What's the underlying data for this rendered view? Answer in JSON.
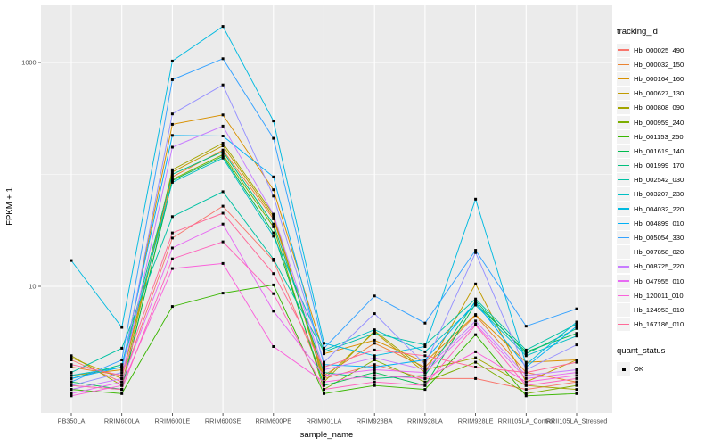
{
  "figure": {
    "xlabel": "sample_name",
    "ylabel": "FPKM + 1"
  },
  "legend": {
    "tracking_title": "tracking_id",
    "quant_title": "quant_status",
    "quant_items": [
      {
        "label": "OK",
        "marker": "black-square"
      }
    ]
  },
  "colors": {
    "panel_bg": "#EBEBEB",
    "grid": "#FFFFFF",
    "axis_text": "#4D4D4D",
    "tick_mark": "#333333",
    "point": "#000000",
    "legend_key_bg": "#F2F2F2"
  },
  "chart_data": {
    "type": "line",
    "title": "",
    "xlabel": "sample_name",
    "ylabel": "FPKM + 1",
    "y_scale": "log10",
    "y_tick_labels": [
      "1000",
      "10"
    ],
    "y_tick_values": [
      1000,
      10
    ],
    "grid_major_y": [
      10,
      1000
    ],
    "grid_minor_y": [
      100
    ],
    "legend_position": "right",
    "point_shape": "square",
    "categories": [
      "PB350LA",
      "RRIM600LA",
      "RRIM600LE",
      "RRIM600SE",
      "RRIM600PE",
      "RRIM901LA",
      "RRIM928BA",
      "RRIM928LA",
      "RRIM928LE",
      "RRII105LA_Control",
      "RRII105LA_Stressed"
    ],
    "series": [
      {
        "name": "Hb_000025_490",
        "color": "#F8766D",
        "values": [
          2.2,
          1.4,
          27,
          52,
          17,
          1.5,
          2.0,
          1.5,
          1.5,
          1.2,
          1.4
        ]
      },
      {
        "name": "Hb_000032_150",
        "color": "#EA8331",
        "values": [
          1.9,
          1.6,
          95,
          165,
          40,
          1.6,
          3.1,
          1.9,
          5.5,
          1.7,
          1.4
        ]
      },
      {
        "name": "Hb_000164_160",
        "color": "#D89000",
        "values": [
          1.6,
          1.8,
          280,
          340,
          73,
          2.5,
          3.3,
          2.1,
          5.6,
          2.1,
          2.2
        ]
      },
      {
        "name": "Hb_000627_130",
        "color": "#C09B00",
        "values": [
          2.3,
          1.5,
          105,
          180,
          42,
          1.5,
          3.9,
          1.7,
          10.5,
          1.4,
          2.2
        ]
      },
      {
        "name": "Hb_000808_090",
        "color": "#A3A500",
        "values": [
          2.4,
          1.3,
          110,
          190,
          44,
          1.4,
          4.0,
          1.8,
          2.3,
          1.3,
          1.2
        ]
      },
      {
        "name": "Hb_000959_240",
        "color": "#7CAE00",
        "values": [
          1.3,
          1.2,
          90,
          150,
          34,
          1.2,
          2.2,
          1.4,
          2.1,
          1.1,
          1.3
        ]
      },
      {
        "name": "Hb_001153_250",
        "color": "#39B600",
        "values": [
          1.2,
          1.1,
          6.6,
          8.7,
          10.3,
          1.1,
          1.3,
          1.2,
          3.7,
          1.05,
          1.1
        ]
      },
      {
        "name": "Hb_001619_140",
        "color": "#00BB4E",
        "values": [
          1.4,
          1.2,
          88,
          145,
          30,
          1.3,
          1.7,
          1.3,
          7.0,
          2.6,
          3.8
        ]
      },
      {
        "name": "Hb_001999_170",
        "color": "#00BF7D",
        "values": [
          1.5,
          2.0,
          100,
          160,
          36,
          1.7,
          1.5,
          1.6,
          7.4,
          2.5,
          4.2
        ]
      },
      {
        "name": "Hb_002542_030",
        "color": "#00C1A3",
        "values": [
          1.7,
          2.8,
          42,
          70,
          17.5,
          2.6,
          3.8,
          3.0,
          7.7,
          2.7,
          4.6
        ]
      },
      {
        "name": "Hb_003207_230",
        "color": "#00BFC4",
        "values": [
          1.6,
          1.9,
          85,
          140,
          28,
          2.7,
          4.1,
          2.6,
          6.8,
          2.4,
          3.6
        ]
      },
      {
        "name": "Hb_004032_220",
        "color": "#00BAE0",
        "values": [
          17,
          4.3,
          1030,
          2100,
          300,
          3.1,
          2.4,
          2.9,
          60,
          2.0,
          4.8
        ]
      },
      {
        "name": "Hb_004899_010",
        "color": "#00B0F6",
        "values": [
          1.5,
          1.9,
          223,
          220,
          95,
          2.0,
          1.9,
          2.2,
          7.2,
          1.9,
          4.4
        ]
      },
      {
        "name": "Hb_005054_330",
        "color": "#35A2FF",
        "values": [
          1.4,
          2.2,
          700,
          1080,
          210,
          2.8,
          8.2,
          4.7,
          21,
          4.4,
          6.3
        ]
      },
      {
        "name": "Hb_007858_020",
        "color": "#9590FF",
        "values": [
          1.3,
          1.7,
          347,
          630,
          64,
          2.1,
          5.7,
          2.0,
          20,
          1.8,
          3.0
        ]
      },
      {
        "name": "Hb_008725_220",
        "color": "#C77CFF",
        "values": [
          1.2,
          1.5,
          175,
          270,
          44,
          1.8,
          2.3,
          1.8,
          4.9,
          1.6,
          1.8
        ]
      },
      {
        "name": "Hb_047955_010",
        "color": "#E76BF3",
        "values": [
          1.1,
          1.4,
          22,
          36,
          6.0,
          1.6,
          1.8,
          1.7,
          4.6,
          1.5,
          1.7
        ]
      },
      {
        "name": "Hb_120011_010",
        "color": "#FA62DB",
        "values": [
          1.05,
          1.3,
          14.4,
          16,
          2.9,
          1.4,
          1.6,
          1.5,
          2.6,
          1.4,
          1.6
        ]
      },
      {
        "name": "Hb_124953_010",
        "color": "#FF62BC",
        "values": [
          1.3,
          1.2,
          17.6,
          25,
          8.6,
          1.2,
          1.4,
          1.3,
          4.5,
          1.3,
          1.5
        ]
      },
      {
        "name": "Hb_167186_010",
        "color": "#FF6A98",
        "values": [
          2.0,
          1.6,
          30,
          45,
          13,
          1.9,
          2.7,
          2.4,
          1.9,
          1.7,
          2.1
        ]
      }
    ]
  }
}
